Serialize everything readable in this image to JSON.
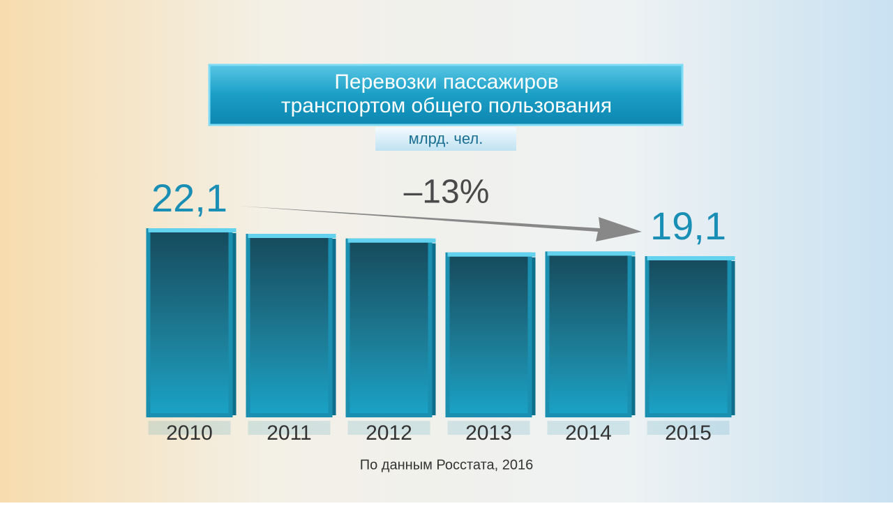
{
  "chart_data": {
    "type": "bar",
    "title": [
      "Перевозки пассажиров",
      "транспортом общего пользования"
    ],
    "subtitle": "млрд. чел.",
    "annotation": "–13%",
    "source": "По данным Росстата, 2016",
    "categories": [
      "2010",
      "2011",
      "2012",
      "2013",
      "2014",
      "2015"
    ],
    "values": [
      22.1,
      21.5,
      21.0,
      19.5,
      19.6,
      19.1
    ],
    "value_labels": [
      "22,1",
      null,
      null,
      null,
      null,
      "19,1"
    ],
    "color": "#1a8fb0"
  }
}
